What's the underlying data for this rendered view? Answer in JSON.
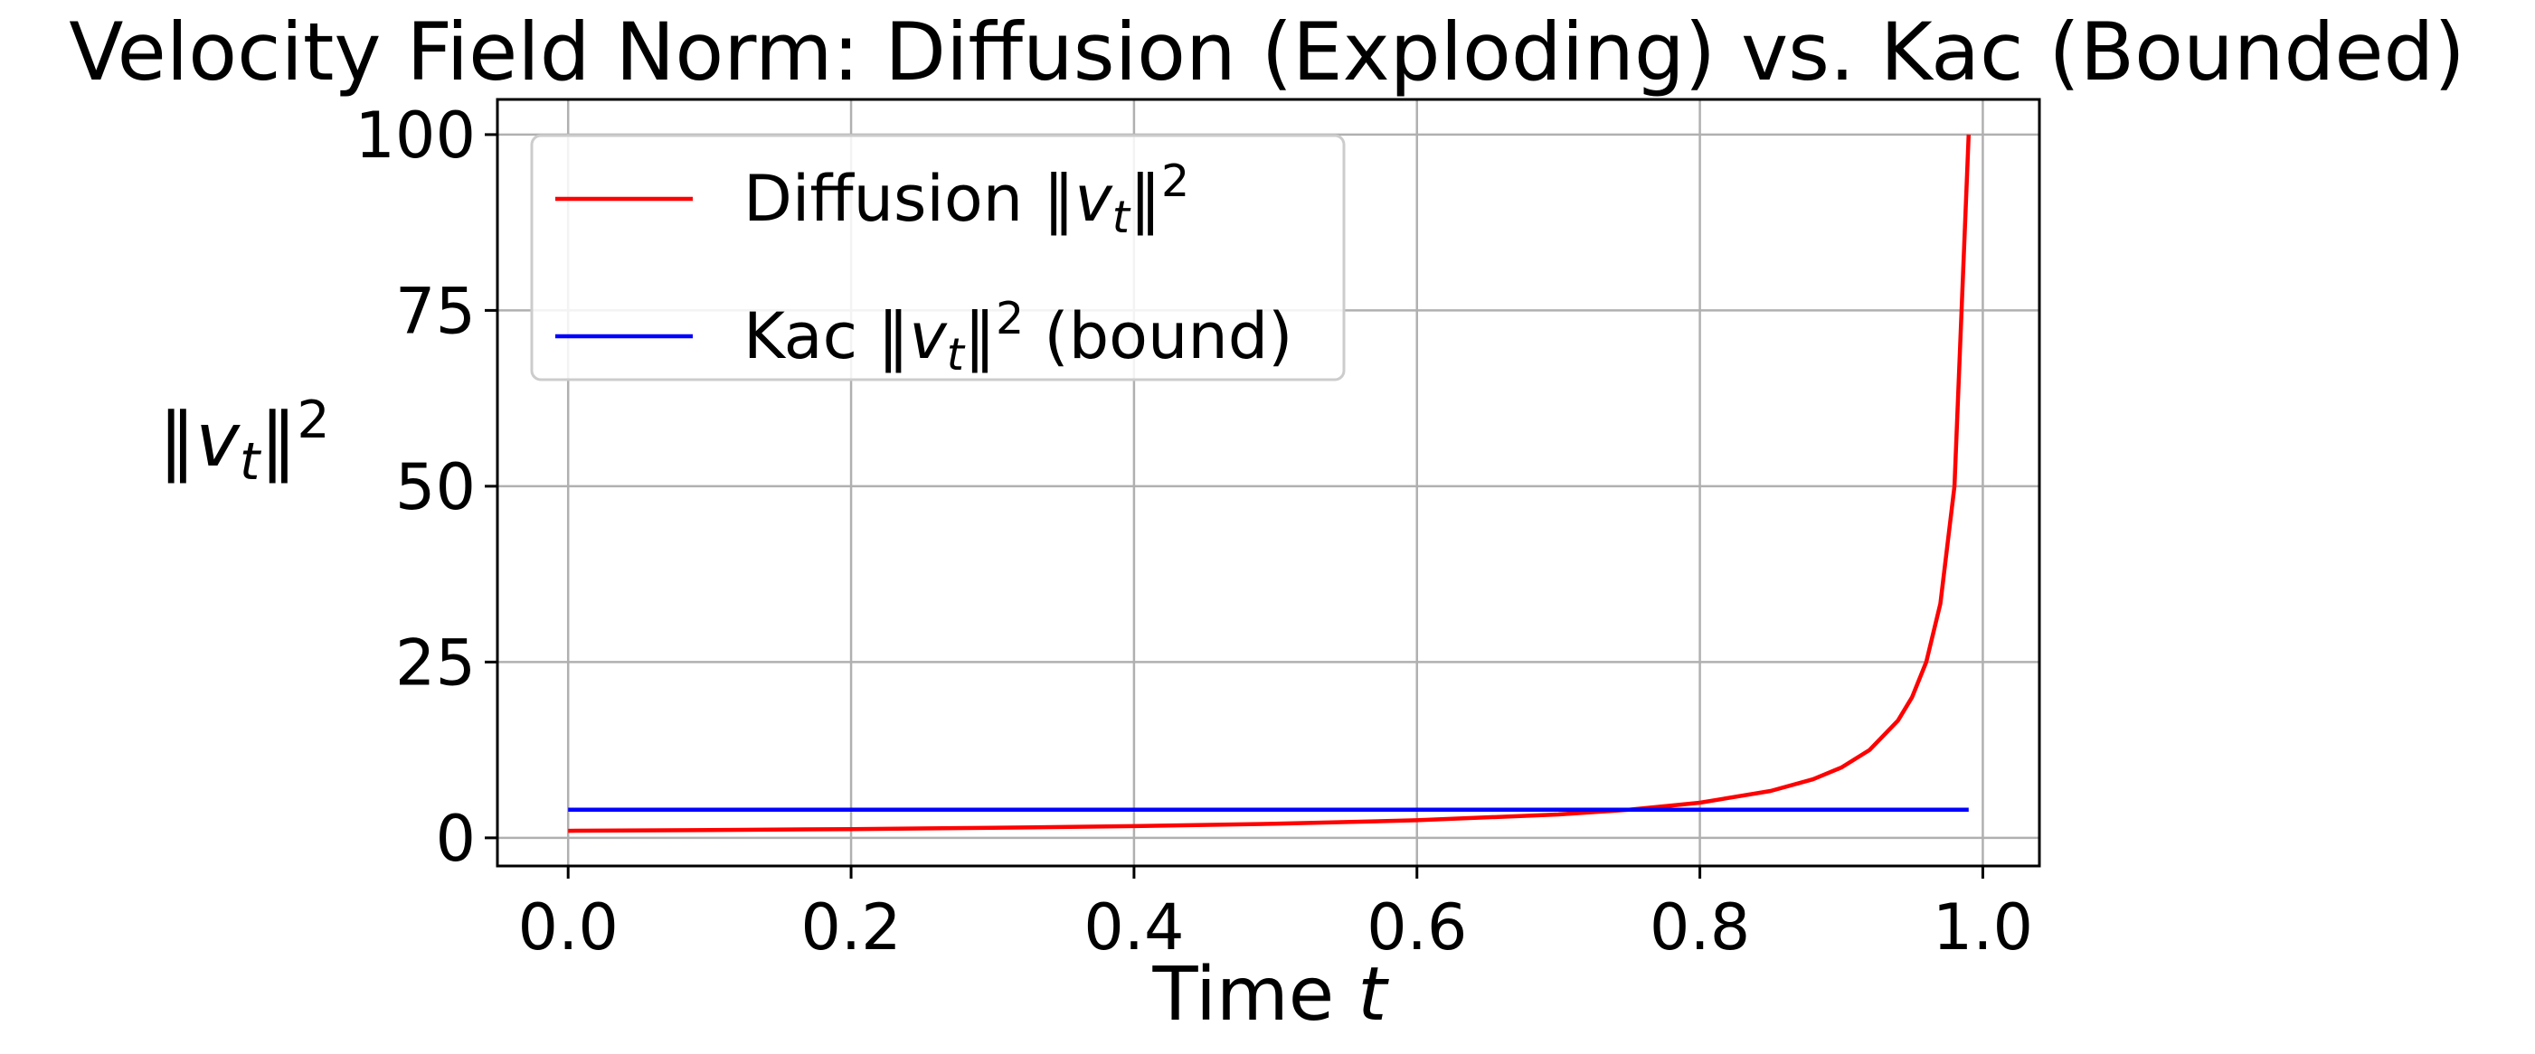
{
  "chart_data": {
    "type": "line",
    "title": "Velocity Field Norm: Diffusion (Exploding) vs. Kac (Bounded)",
    "xlabel": "Time t",
    "ylabel": "‖vt‖²",
    "xlim": [
      -0.05,
      1.04
    ],
    "ylim": [
      -4,
      105
    ],
    "xticks": [
      0.0,
      0.2,
      0.4,
      0.6,
      0.8,
      1.0
    ],
    "xtick_labels": [
      "0.0",
      "0.2",
      "0.4",
      "0.6",
      "0.8",
      "1.0"
    ],
    "yticks": [
      0,
      25,
      50,
      75,
      100
    ],
    "ytick_labels": [
      "0",
      "25",
      "50",
      "75",
      "100"
    ],
    "grid": true,
    "legend_position": "upper-left",
    "series": [
      {
        "name": "Diffusion ‖vt‖²",
        "color": "#ff0000",
        "x": [
          0.0,
          0.1,
          0.2,
          0.3,
          0.4,
          0.5,
          0.6,
          0.7,
          0.75,
          0.8,
          0.85,
          0.88,
          0.9,
          0.92,
          0.94,
          0.95,
          0.96,
          0.97,
          0.98,
          0.99
        ],
        "y": [
          1.0,
          1.11,
          1.25,
          1.43,
          1.67,
          2.0,
          2.5,
          3.33,
          4.0,
          5.0,
          6.67,
          8.33,
          10.0,
          12.5,
          16.67,
          20.0,
          25.0,
          33.3,
          50.0,
          100.0
        ]
      },
      {
        "name": "Kac ‖vt‖² (bound)",
        "color": "#0000ff",
        "x": [
          0.0,
          0.99
        ],
        "y": [
          4.0,
          4.0
        ]
      }
    ]
  }
}
